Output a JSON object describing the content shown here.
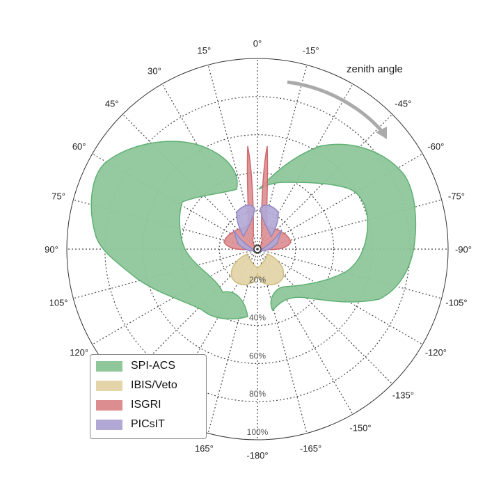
{
  "chart_data": {
    "type": "polar-area",
    "theta_ticks": [
      "0°",
      "-15°",
      "-45°",
      "-60°",
      "-75°",
      "-90°",
      "-105°",
      "-120°",
      "-135°",
      "-150°",
      "-165°",
      "-180°",
      "165°",
      "120°",
      "105°",
      "90°",
      "75°",
      "60°",
      "45°",
      "30°",
      "15°"
    ],
    "radial_ticks": [
      "20%",
      "40%",
      "60%",
      "80%",
      "100%"
    ],
    "radial_range": [
      0,
      100
    ],
    "annotation": "zenith angle",
    "grid": true,
    "legend_position": "lower-left",
    "series": [
      {
        "name": "SPI-ACS",
        "color": "#8fc79b",
        "edge": "#5fb074"
      },
      {
        "name": "IBIS/Veto",
        "color": "#e3d5a9",
        "edge": "#cfbb7e"
      },
      {
        "name": "ISGRI",
        "color": "#dc8d90",
        "edge": "#cc6a6e"
      },
      {
        "name": "PICsIT",
        "color": "#b1a8d6",
        "edge": "#9187c5"
      }
    ]
  }
}
